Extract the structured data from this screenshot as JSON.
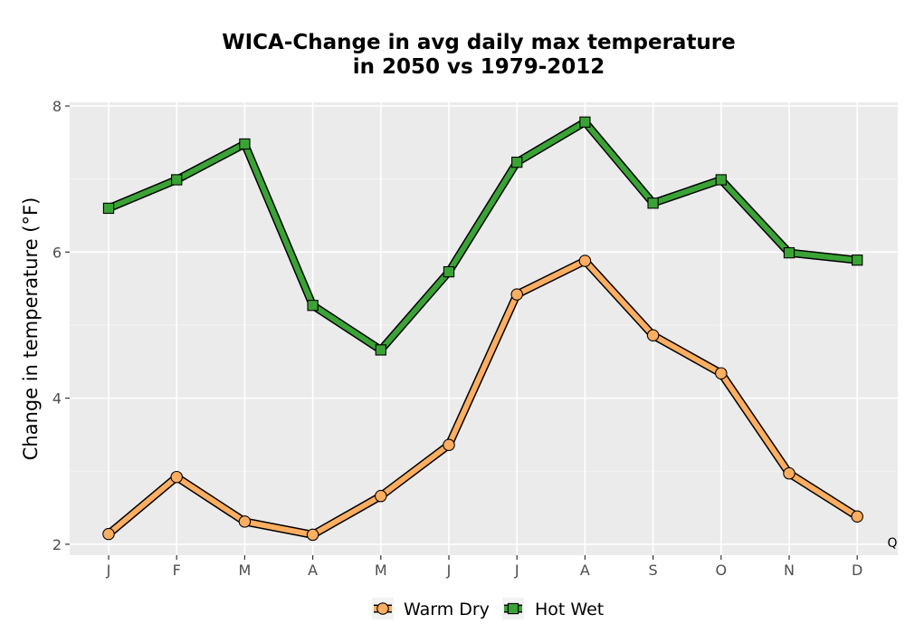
{
  "chart_data": {
    "type": "line",
    "title_lines": [
      "WICA-Change in avg daily max temperature",
      "in 2050 vs 1979-2012"
    ],
    "xlabel": "",
    "ylabel": "Change in temperature (°F)",
    "categories": [
      "J",
      "F",
      "M",
      "A",
      "M",
      "J",
      "J",
      "A",
      "S",
      "O",
      "N",
      "D"
    ],
    "ylim": [
      1.85,
      8.05
    ],
    "yticks": [
      2,
      4,
      6,
      8
    ],
    "grid": true,
    "legend_position": "bottom",
    "series": [
      {
        "name": "Warm Dry",
        "marker": "circle",
        "color": "#fdae61",
        "values": [
          2.14,
          2.92,
          2.31,
          2.13,
          2.66,
          3.36,
          5.42,
          5.88,
          4.86,
          4.34,
          2.97,
          2.38
        ]
      },
      {
        "name": "Hot Wet",
        "marker": "square",
        "color": "#3aa335",
        "values": [
          6.6,
          6.99,
          7.48,
          5.27,
          4.66,
          5.73,
          7.23,
          7.78,
          6.67,
          6.99,
          5.99,
          5.89
        ]
      }
    ],
    "corner_label": "Q"
  }
}
